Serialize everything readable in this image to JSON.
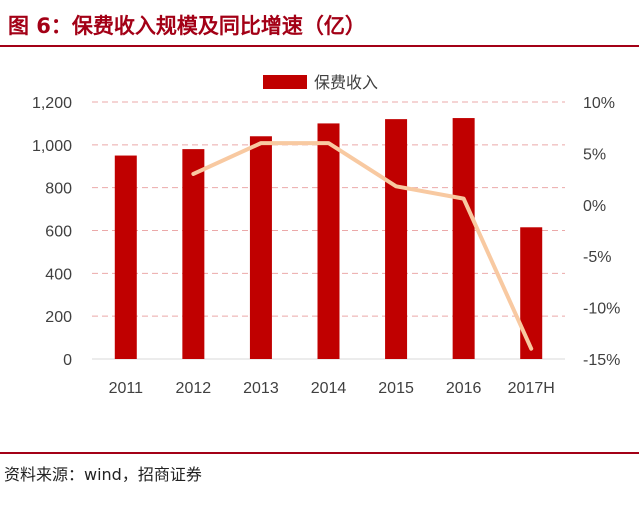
{
  "header": {
    "title": "图 6：保费收入规模及同比增速（亿）"
  },
  "footer": {
    "source": "资料来源：wind，招商证券"
  },
  "chart_data": {
    "type": "bar",
    "categories": [
      "2011",
      "2012",
      "2013",
      "2014",
      "2015",
      "2016",
      "2017H"
    ],
    "series": [
      {
        "name": "保费收入",
        "type": "bar",
        "axis": "left",
        "values": [
          950,
          980,
          1040,
          1100,
          1120,
          1125,
          615
        ],
        "color": "#c00000"
      },
      {
        "type": "line",
        "axis": "right",
        "values": [
          null,
          3.0,
          6.0,
          6.0,
          1.8,
          0.6,
          -14.0
        ],
        "color": "#f8c9a1"
      }
    ],
    "yleft": {
      "ticks": [
        "1,200",
        "1,000",
        "800",
        "600",
        "400",
        "200",
        "0"
      ],
      "ylim": [
        0,
        1200
      ]
    },
    "yright": {
      "ticks": [
        "10%",
        "5%",
        "0%",
        "-5%",
        "-10%",
        "-15%"
      ],
      "ylim": [
        -15,
        10
      ]
    },
    "grid": true,
    "legend": "top-center"
  }
}
